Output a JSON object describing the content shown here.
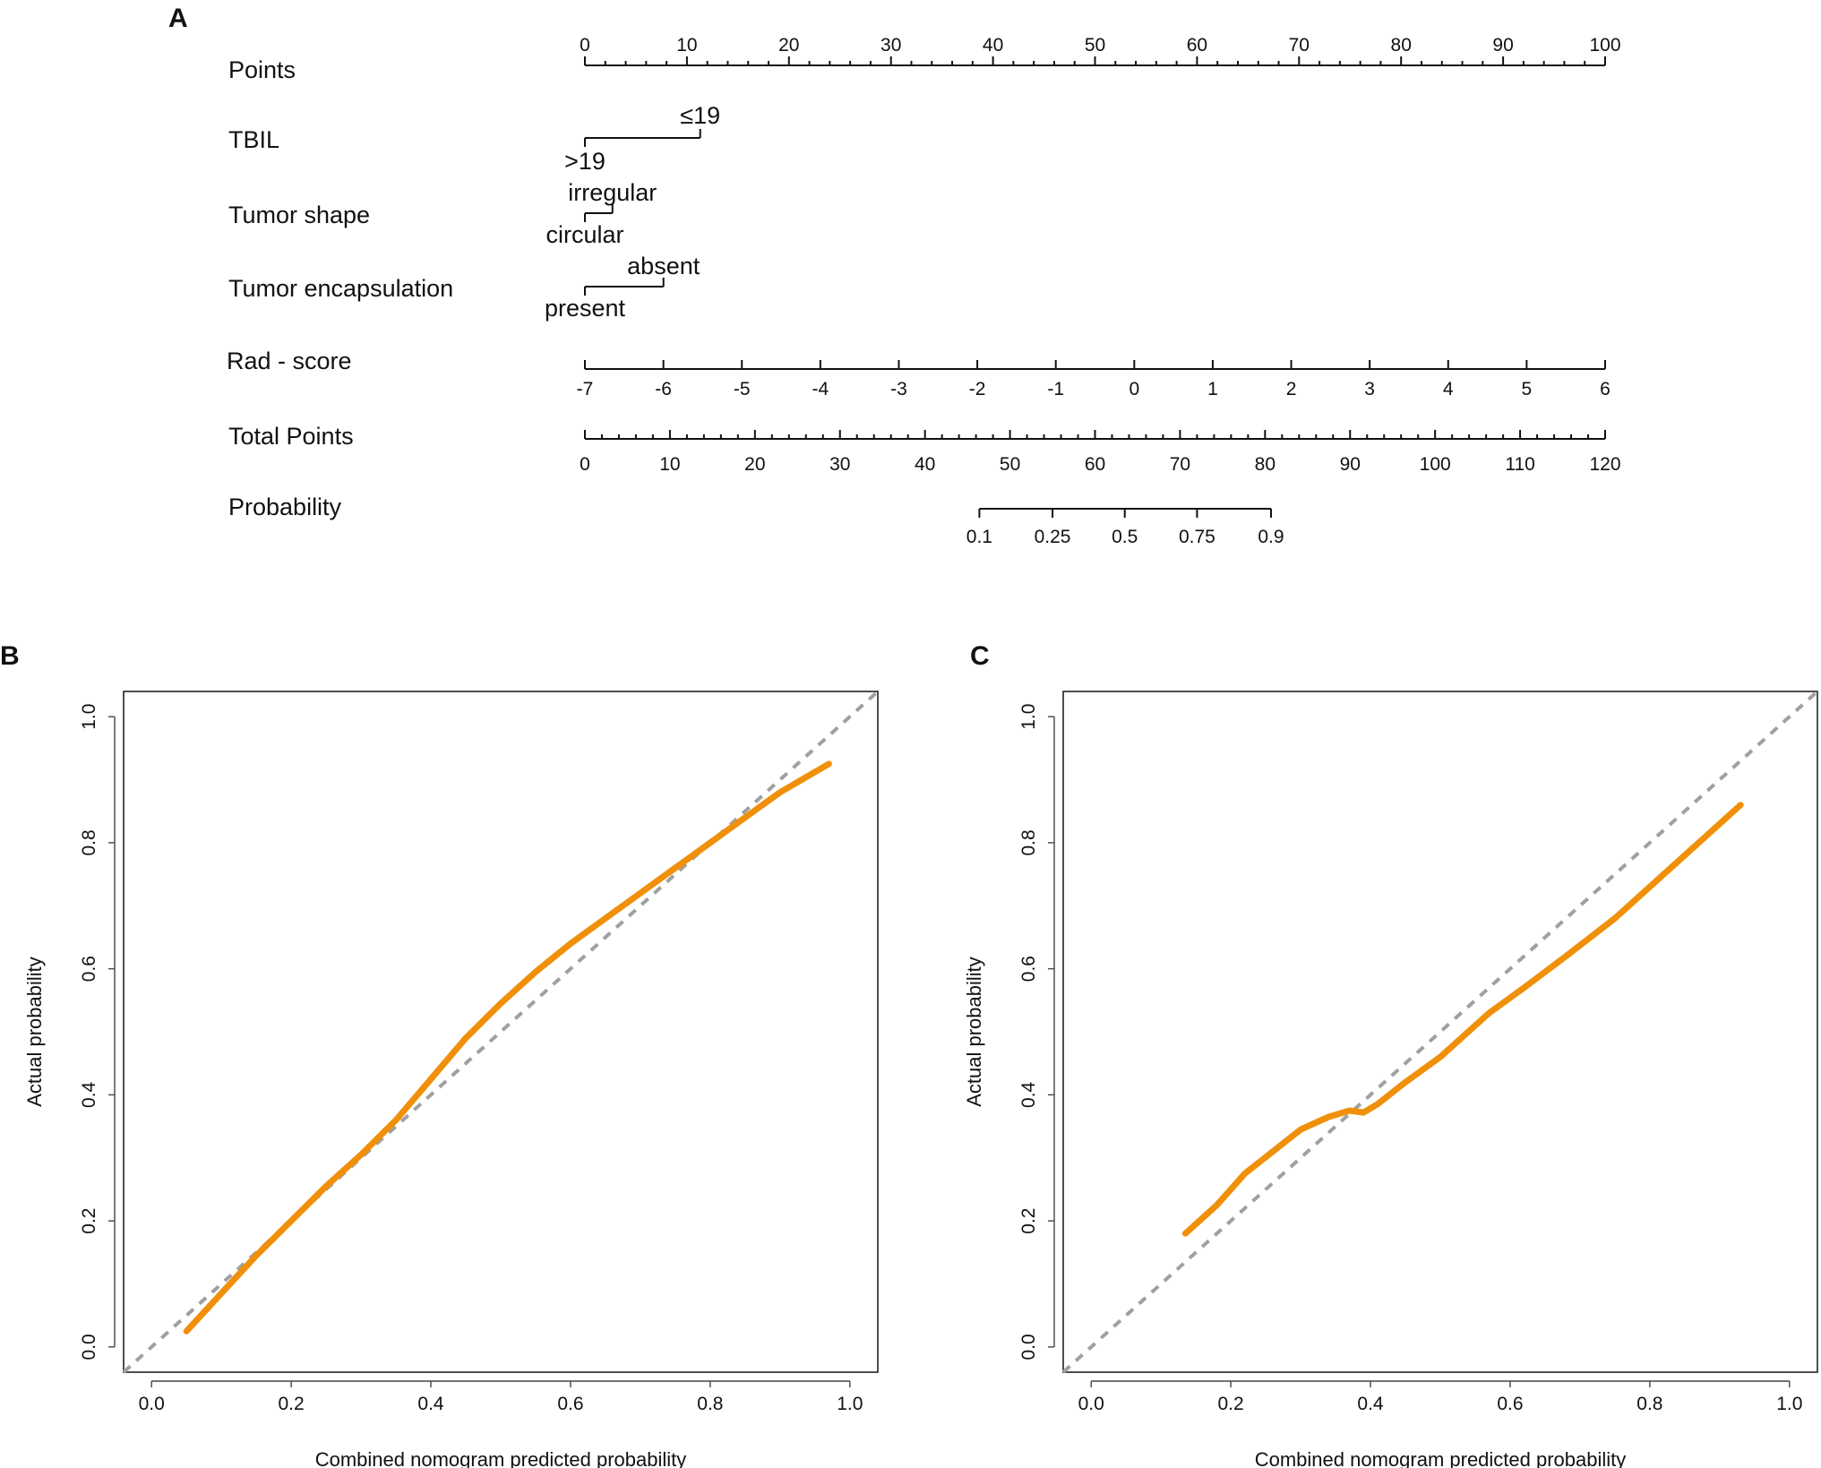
{
  "colors": {
    "calibration_curve": "#f0900a",
    "ideal_line": "#a0a0a0"
  },
  "chart_data": [
    {
      "panel": "A",
      "type": "nomogram",
      "points_scale": {
        "label": "Points",
        "min": 0,
        "max": 100,
        "major_step": 10,
        "minor_step": 2,
        "tick_labels": [
          "0",
          "10",
          "20",
          "30",
          "40",
          "50",
          "60",
          "70",
          "80",
          "90",
          "100"
        ]
      },
      "predictors": [
        {
          "label": "TBIL",
          "levels": [
            {
              "name": "≤19",
              "points": 11.3,
              "side": "above"
            },
            {
              "name": ">19",
              "points": 0,
              "side": "below"
            }
          ]
        },
        {
          "label": "Tumor shape",
          "levels": [
            {
              "name": "irregular",
              "points": 2.7,
              "side": "above"
            },
            {
              "name": "circular",
              "points": 0,
              "side": "below"
            }
          ]
        },
        {
          "label": "Tumor encapsulation",
          "levels": [
            {
              "name": "absent",
              "points": 7.7,
              "side": "above"
            },
            {
              "name": "present",
              "points": 0,
              "side": "below"
            }
          ]
        }
      ],
      "rad_score": {
        "label": "Rad - score",
        "min": -7,
        "max": 6,
        "points_at_min": 0,
        "points_at_max": 100,
        "tick_labels": [
          "-7",
          "-6",
          "-5",
          "-4",
          "-3",
          "-2",
          "-1",
          "0",
          "1",
          "2",
          "3",
          "4",
          "5",
          "6"
        ]
      },
      "total_points": {
        "label": "Total Points",
        "min": 0,
        "max": 120,
        "major_step": 10,
        "minor_step": 2,
        "tick_labels": [
          "0",
          "10",
          "20",
          "30",
          "40",
          "50",
          "60",
          "70",
          "80",
          "90",
          "100",
          "110",
          "120"
        ]
      },
      "probability": {
        "label": "Probability",
        "ticks": [
          {
            "label": "0.1",
            "total_points": 46.4
          },
          {
            "label": "0.25",
            "total_points": 55
          },
          {
            "label": "0.5",
            "total_points": 63.5
          },
          {
            "label": "0.75",
            "total_points": 72
          },
          {
            "label": "0.9",
            "total_points": 80.7
          }
        ]
      }
    },
    {
      "panel": "B",
      "type": "line",
      "xlabel": "Combined nomogram predicted probability",
      "ylabel": "Actual probability",
      "xlim": [
        -0.04,
        1.04
      ],
      "ylim": [
        -0.04,
        1.04
      ],
      "ticks": [
        0.0,
        0.2,
        0.4,
        0.6,
        0.8,
        1.0
      ],
      "tick_labels": [
        "0.0",
        "0.2",
        "0.4",
        "0.6",
        "0.8",
        "1.0"
      ],
      "series": [
        {
          "name": "Ideal",
          "style": "dashed",
          "x": [
            -0.04,
            1.04
          ],
          "y": [
            -0.04,
            1.04
          ]
        },
        {
          "name": "Calibration",
          "style": "solid",
          "x": [
            0.05,
            0.1,
            0.15,
            0.2,
            0.25,
            0.3,
            0.35,
            0.4,
            0.45,
            0.5,
            0.55,
            0.6,
            0.65,
            0.7,
            0.75,
            0.8,
            0.85,
            0.9,
            0.97
          ],
          "y": [
            0.025,
            0.085,
            0.145,
            0.2,
            0.255,
            0.305,
            0.36,
            0.425,
            0.49,
            0.545,
            0.595,
            0.64,
            0.68,
            0.72,
            0.76,
            0.8,
            0.84,
            0.88,
            0.925
          ]
        }
      ]
    },
    {
      "panel": "C",
      "type": "line",
      "xlabel": "Combined nomogram predicted probability",
      "ylabel": "Actual probability",
      "xlim": [
        -0.04,
        1.04
      ],
      "ylim": [
        -0.04,
        1.04
      ],
      "ticks": [
        0.0,
        0.2,
        0.4,
        0.6,
        0.8,
        1.0
      ],
      "tick_labels": [
        "0.0",
        "0.2",
        "0.4",
        "0.6",
        "0.8",
        "1.0"
      ],
      "series": [
        {
          "name": "Ideal",
          "style": "dashed",
          "x": [
            -0.04,
            1.04
          ],
          "y": [
            -0.04,
            1.04
          ]
        },
        {
          "name": "Calibration",
          "style": "solid",
          "x": [
            0.135,
            0.18,
            0.22,
            0.26,
            0.3,
            0.34,
            0.37,
            0.39,
            0.41,
            0.45,
            0.5,
            0.53,
            0.57,
            0.62,
            0.68,
            0.75,
            0.8,
            0.86,
            0.93
          ],
          "y": [
            0.18,
            0.225,
            0.275,
            0.31,
            0.345,
            0.365,
            0.375,
            0.372,
            0.385,
            0.42,
            0.46,
            0.49,
            0.53,
            0.57,
            0.62,
            0.68,
            0.73,
            0.79,
            0.86
          ]
        }
      ]
    }
  ]
}
